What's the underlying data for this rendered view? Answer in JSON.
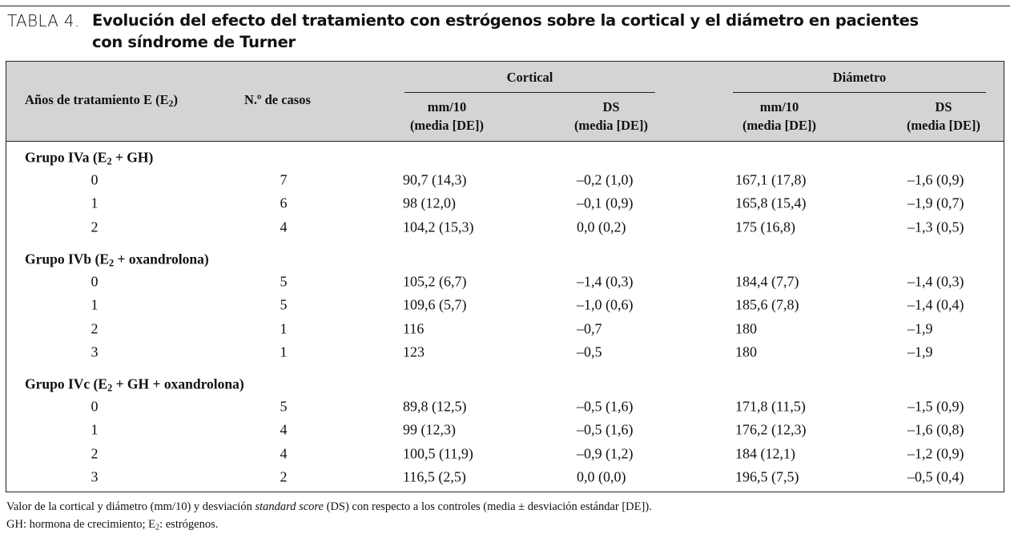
{
  "title": {
    "label": "TABLA 4.",
    "lines": [
      "Evolución del efecto del tratamiento con estrógenos sobre la cortical y el diámetro en pacientes",
      "con síndrome de Turner"
    ]
  },
  "table": {
    "header": {
      "years": [
        "Años de tratamiento E (E",
        "2",
        ")"
      ],
      "cases": "N.º de casos",
      "cortical": {
        "label": "Cortical",
        "columns": [
          [
            "mm/10",
            "(media [DE])"
          ],
          [
            "DS",
            "(media [DE])"
          ]
        ]
      },
      "diameter": {
        "label": "Diámetro",
        "columns": [
          [
            "mm/10",
            "(media [DE])"
          ],
          [
            "DS",
            "(media [DE])"
          ]
        ]
      }
    },
    "groups": [
      {
        "label": [
          "Grupo IVa (E",
          "2",
          " + GH)"
        ],
        "rows": [
          [
            "0",
            "7",
            "90,7 (14,3)",
            "–0,2 (1,0)",
            "167,1 (17,8)",
            "–1,6 (0,9)"
          ],
          [
            "1",
            "6",
            "98 (12,0)",
            "–0,1 (0,9)",
            "165,8 (15,4)",
            "–1,9 (0,7)"
          ],
          [
            "2",
            "4",
            "104,2 (15,3)",
            "0,0 (0,2)",
            "175 (16,8)",
            "–1,3 (0,5)"
          ]
        ]
      },
      {
        "label": [
          "Grupo IVb (E",
          "2",
          " + oxandrolona)"
        ],
        "rows": [
          [
            "0",
            "5",
            "105,2 (6,7)",
            "–1,4 (0,3)",
            "184,4 (7,7)",
            "–1,4 (0,3)"
          ],
          [
            "1",
            "5",
            "109,6 (5,7)",
            "–1,0 (0,6)",
            "185,6 (7,8)",
            "–1,4 (0,4)"
          ],
          [
            "2",
            "1",
            "116",
            "–0,7",
            "180",
            "–1,9"
          ],
          [
            "3",
            "1",
            "123",
            "–0,5",
            "180",
            "–1,9"
          ]
        ]
      },
      {
        "label": [
          "Grupo IVc (E",
          "2",
          " + GH + oxandrolona)"
        ],
        "rows": [
          [
            "0",
            "5",
            "89,8 (12,5)",
            "–0,5 (1,6)",
            "171,8 (11,5)",
            "–1,5 (0,9)"
          ],
          [
            "1",
            "4",
            "99 (12,3)",
            "–0,5 (1,6)",
            "176,2 (12,3)",
            "–1,6 (0,8)"
          ],
          [
            "2",
            "4",
            "100,5 (11,9)",
            "–0,9 (1,2)",
            "184 (12,1)",
            "–1,2 (0,9)"
          ],
          [
            "3",
            "2",
            "116,5 (2,5)",
            "0,0 (0,0)",
            "196,5 (7,5)",
            "–0,5 (0,4)"
          ]
        ]
      }
    ]
  },
  "footnotes": [
    [
      "Valor de la cortical y diámetro (mm/10) y desviación ",
      "standard score",
      " (DS) con respecto a los controles (media ± desviación estándar [DE])."
    ],
    [
      "GH: hormona de crecimiento; E",
      "2",
      ": estrógenos."
    ]
  ]
}
